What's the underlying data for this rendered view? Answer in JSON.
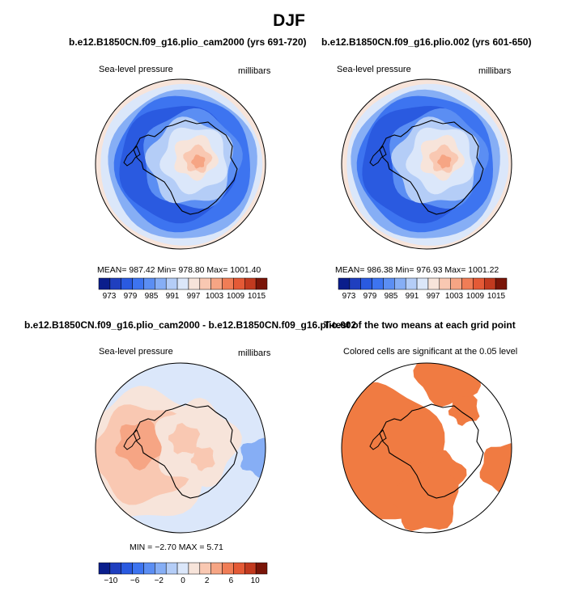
{
  "page": {
    "title": "DJF"
  },
  "colors": {
    "palette": [
      "#0a1e8c",
      "#1f3fbf",
      "#2a5ae0",
      "#3d74f0",
      "#5b8ef3",
      "#86aef5",
      "#b4cdf7",
      "#dbe7fa",
      "#f7e4da",
      "#f9c8b2",
      "#f6a584",
      "#f07d56",
      "#e45a36",
      "#c23a1f",
      "#7a1508"
    ],
    "significant": "#f07b42",
    "coast": "#000000"
  },
  "chart_data": [
    {
      "type": "heatmap",
      "title": "b.e12.B1850CN.f09_g16.plio_cam2000 (yrs 691-720)",
      "left_label": "Sea-level pressure",
      "right_label": "millibars",
      "variable": "Sea-level pressure",
      "units": "millibars",
      "stats": {
        "mean": "987.42",
        "min": "978.80",
        "max": "1001.40"
      },
      "stats_text": "MEAN= 987.42   Min= 978.80   Max= 1001.40",
      "colorbar_ticks": [
        "973",
        "979",
        "985",
        "991",
        "997",
        "1003",
        "1009",
        "1015"
      ]
    },
    {
      "type": "heatmap",
      "title": "b.e12.B1850CN.f09_g16.plio.002 (yrs 601-650)",
      "left_label": "Sea-level pressure",
      "right_label": "millibars",
      "variable": "Sea-level pressure",
      "units": "millibars",
      "stats": {
        "mean": "986.38",
        "min": "976.93",
        "max": "1001.22"
      },
      "stats_text": "MEAN= 986.38   Min= 976.93   Max= 1001.22",
      "colorbar_ticks": [
        "973",
        "979",
        "985",
        "991",
        "997",
        "1003",
        "1009",
        "1015"
      ]
    },
    {
      "type": "heatmap",
      "title": "b.e12.B1850CN.f09_g16.plio_cam2000 - b.e12.B1850CN.f09_g16.plio.002",
      "left_label": "Sea-level pressure",
      "right_label": "millibars",
      "variable": "Sea-level pressure difference",
      "units": "millibars",
      "stats": {
        "min": "-2.70",
        "max": "5.71"
      },
      "stats_text": "MIN =    −2.70  MAX =     5.71",
      "colorbar_ticks": [
        "−10",
        "−6",
        "−2",
        "0",
        "2",
        "6",
        "10"
      ]
    },
    {
      "type": "heatmap",
      "title": "T-test of the two means at each grid point",
      "subtitle": "Colored cells are significant at the 0.05 level",
      "significance_level": 0.05
    }
  ]
}
